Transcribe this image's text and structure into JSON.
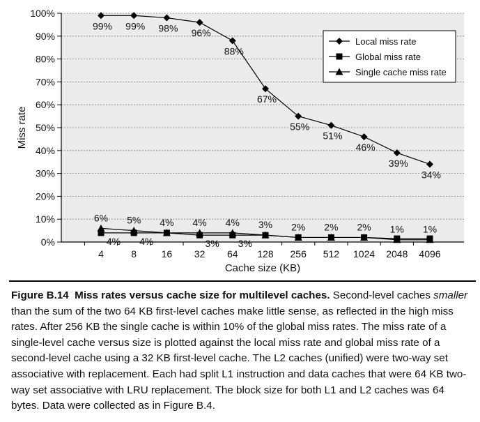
{
  "chart_data": {
    "type": "line",
    "xlabel": "Cache size (KB)",
    "ylabel": "Miss rate",
    "categories": [
      "4",
      "8",
      "16",
      "32",
      "64",
      "128",
      "256",
      "512",
      "1024",
      "2048",
      "4096"
    ],
    "ylim": [
      0,
      100
    ],
    "y_ticks": [
      "0%",
      "10%",
      "20%",
      "30%",
      "40%",
      "50%",
      "60%",
      "70%",
      "80%",
      "90%",
      "100%"
    ],
    "grid": true,
    "legend_position": "top-right",
    "series": [
      {
        "name": "Local miss rate",
        "marker": "diamond",
        "values": [
          99,
          99,
          98,
          96,
          88,
          67,
          55,
          51,
          46,
          39,
          34
        ],
        "labels": [
          "99%",
          "99%",
          "98%",
          "96%",
          "88%",
          "67%",
          "55%",
          "51%",
          "46%",
          "39%",
          "34%"
        ]
      },
      {
        "name": "Global miss rate",
        "marker": "square",
        "values": [
          4,
          4,
          4,
          3,
          3,
          3,
          2,
          2,
          2,
          1.5,
          1.5
        ],
        "labels": [
          "4%",
          "4%",
          "",
          "3%",
          "3%",
          "",
          "",
          "",
          "",
          "",
          ""
        ]
      },
      {
        "name": "Single cache miss rate",
        "marker": "triangle",
        "values": [
          6,
          5,
          4,
          4,
          4,
          3,
          2,
          2,
          2,
          1,
          1
        ],
        "labels": [
          "6%",
          "5%",
          "4%",
          "4%",
          "4%",
          "3%",
          "2%",
          "2%",
          "2%",
          "1%",
          "1%"
        ]
      }
    ]
  },
  "caption": {
    "label": "Figure B.14",
    "title": "Miss rates versus cache size for multilevel caches.",
    "text_part1": " Second-level caches ",
    "emphasis": "smaller",
    "text_part2": " than the sum of the two 64 KB first-level caches make little sense, as reflected in the high miss rates. After 256 KB the single cache is within 10% of the global miss rates. The miss rate of a single-level cache versus size is plotted against the local miss rate and global miss rate of a second-level cache using a 32 KB first-level cache. The L2 caches (unified) were two-way set associative with replacement. Each had split L1 instruction and data caches that were 64 KB two-way set associative with LRU replacement. The block size for both L1 and L2 caches was 64 bytes. Data were collected as in Figure B.4."
  }
}
